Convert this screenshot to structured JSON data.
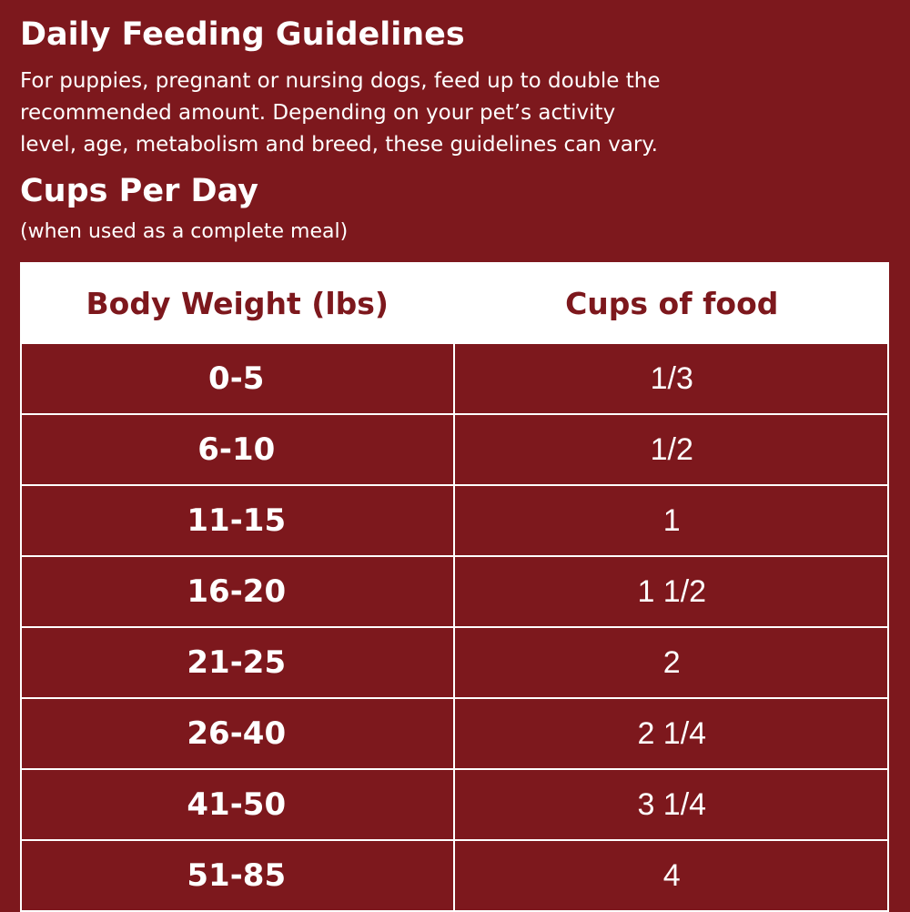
{
  "header": {
    "title": "Daily Feeding Guidelines",
    "paragraph": [
      "For puppies, pregnant or nursing dogs, feed up to double the",
      "recommended amount. Depending on your pet’s activity",
      "level, age, metabolism and breed, these guidelines can vary."
    ],
    "subtitle": "Cups Per Day",
    "note": "(when used as a complete meal)"
  },
  "table": {
    "columns": [
      "Body Weight (lbs)",
      "Cups of food"
    ],
    "rows": [
      [
        "0-5",
        "1/3"
      ],
      [
        "6-10",
        "1/2"
      ],
      [
        "11-15",
        "1"
      ],
      [
        "16-20",
        "1 1/2"
      ],
      [
        "21-25",
        "2"
      ],
      [
        "26-40",
        "2 1/4"
      ],
      [
        "41-50",
        "3 1/4"
      ],
      [
        "51-85",
        "4"
      ]
    ]
  }
}
